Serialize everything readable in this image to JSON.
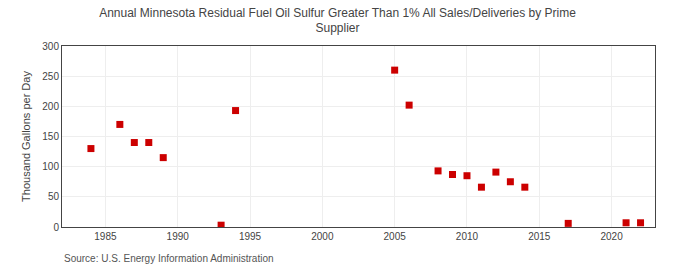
{
  "chart_data": {
    "type": "scatter",
    "title": "Annual Minnesota Residual Fuel Oil Sulfur Greater Than 1% All Sales/Deliveries by Prime\nSupplier",
    "ylabel": "Thousand Gallons per Day",
    "source": "Source: U.S. Energy Information Administration",
    "color": "#cc0000",
    "marker": "square",
    "x": [
      1984,
      1986,
      1987,
      1988,
      1989,
      1993,
      1994,
      2005,
      2006,
      2008,
      2009,
      2010,
      2011,
      2012,
      2013,
      2014,
      2017,
      2021,
      2022
    ],
    "values": [
      130,
      170,
      140,
      140,
      115,
      3,
      193,
      260,
      202,
      93,
      87,
      85,
      66,
      91,
      75,
      66,
      6,
      7,
      7
    ],
    "xlim": [
      1982,
      2023
    ],
    "xticks": [
      1985,
      1990,
      1995,
      2000,
      2005,
      2010,
      2015,
      2020
    ],
    "ylim": [
      0,
      300
    ],
    "yticks": [
      0,
      50,
      100,
      150,
      200,
      250,
      300
    ],
    "grid": true
  }
}
